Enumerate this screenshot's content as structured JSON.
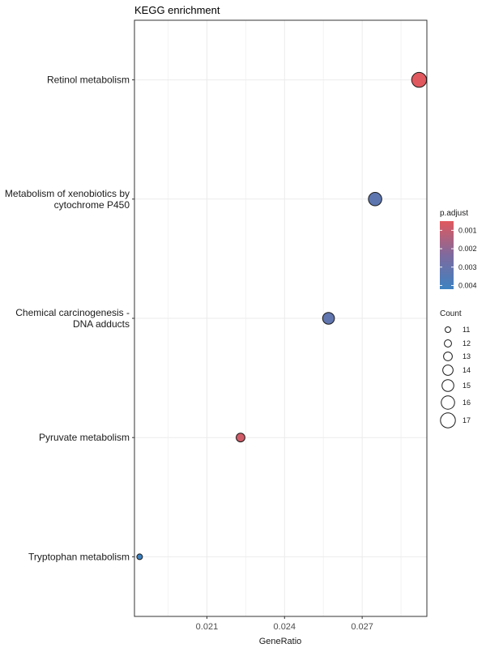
{
  "chart_data": {
    "type": "scatter",
    "title": "KEGG enrichment",
    "xlabel": "GeneRatio",
    "ylabel": "",
    "xlim": [
      0.0182,
      0.0295
    ],
    "x_ticks": [
      "0.021",
      "0.024",
      "0.027"
    ],
    "x_tick_values": [
      0.021,
      0.024,
      0.027
    ],
    "grid": true,
    "categories": [
      {
        "lines": [
          "Retinol metabolism"
        ]
      },
      {
        "lines": [
          "Metabolism of xenobiotics by",
          "cytochrome P450"
        ]
      },
      {
        "lines": [
          "Chemical carcinogenesis -",
          "DNA adducts"
        ]
      },
      {
        "lines": [
          "Pyruvate metabolism"
        ]
      },
      {
        "lines": [
          "Tryptophan metabolism"
        ]
      }
    ],
    "points": [
      {
        "category": "Retinol metabolism",
        "gene_ratio": 0.0292,
        "count": 17,
        "p_adjust": 0.0005
      },
      {
        "category": "Metabolism of xenobiotics by cytochrome P450",
        "gene_ratio": 0.0275,
        "count": 16,
        "p_adjust": 0.0033
      },
      {
        "category": "Chemical carcinogenesis - DNA adducts",
        "gene_ratio": 0.0257,
        "count": 15,
        "p_adjust": 0.0032
      },
      {
        "category": "Pyruvate metabolism",
        "gene_ratio": 0.0223,
        "count": 13,
        "p_adjust": 0.0008
      },
      {
        "category": "Tryptophan metabolism",
        "gene_ratio": 0.0184,
        "count": 11,
        "p_adjust": 0.0042
      }
    ],
    "legend_color": {
      "title": "p.adjust",
      "ticks": [
        "0.001",
        "0.002",
        "0.003",
        "0.004"
      ],
      "tick_values": [
        0.001,
        0.002,
        0.003,
        0.004
      ],
      "range": [
        0.0005,
        0.0042
      ],
      "color_low": "#e0595e",
      "color_high": "#3e82c1",
      "color_mid": "#7e6a9e",
      "placement": "right"
    },
    "legend_size": {
      "title": "Count",
      "values": [
        11,
        12,
        13,
        14,
        15,
        16,
        17
      ],
      "labels": [
        "11",
        "12",
        "13",
        "14",
        "15",
        "16",
        "17"
      ],
      "placement": "right"
    },
    "colors": {
      "grid": "#ebebeb",
      "panel_border": "#333333",
      "point_stroke": "#1a1a1a"
    }
  }
}
